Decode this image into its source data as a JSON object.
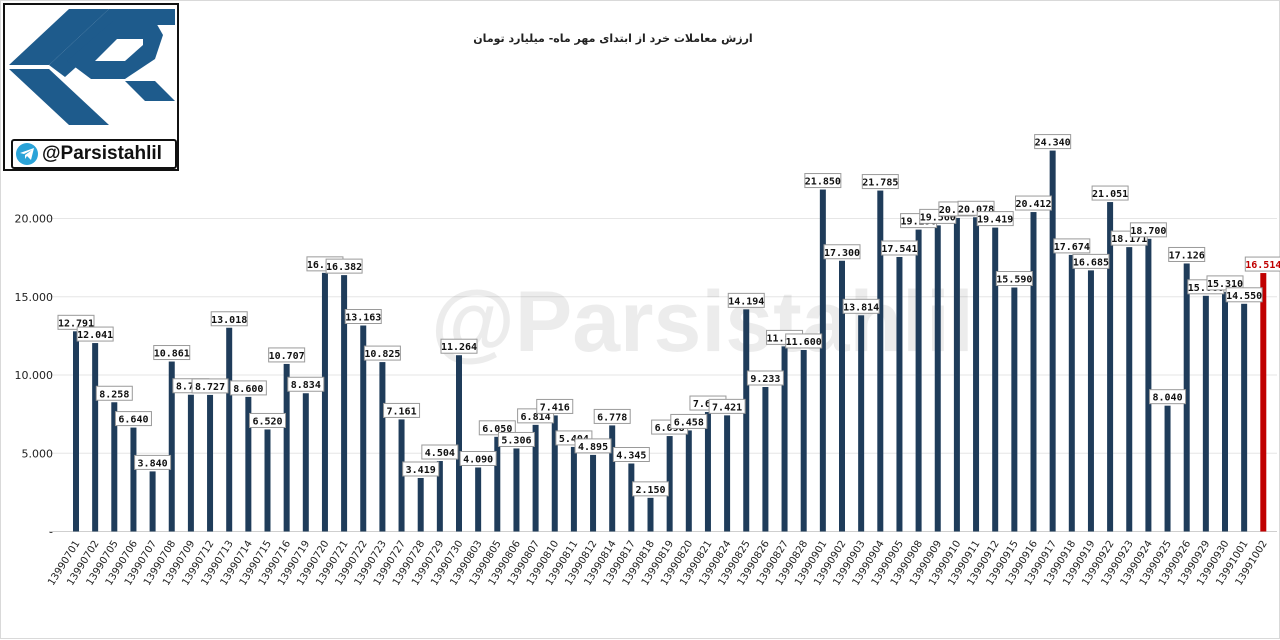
{
  "brand": {
    "handle": "@Parsistahlil",
    "watermark": "@Parsistahlil",
    "logo_icon": "parsistahlil-logo-icon",
    "telegram_icon": "telegram-icon"
  },
  "colors": {
    "bar": "#1f3c5a",
    "bar_highlight": "#c00000",
    "highlight_label": "#c00000",
    "logo_blue": "#1e5b8c"
  },
  "chart_data": {
    "type": "bar",
    "title": "ارزش معاملات خرد از ابتدای مهر ماه- میلیارد تومان",
    "xlabel": "",
    "ylabel": "",
    "ylim": [
      0,
      25000
    ],
    "yticks": [
      0,
      5000,
      10000,
      15000,
      20000
    ],
    "ytick_labels": [
      "-",
      "5.000",
      "10.000",
      "15.000",
      "20.000"
    ],
    "grid": true,
    "legend": "none",
    "categories": [
      "13990701",
      "13990702",
      "13990705",
      "13990706",
      "13990707",
      "13990708",
      "13990709",
      "13990712",
      "13990713",
      "13990714",
      "13990715",
      "13990716",
      "13990719",
      "13990720",
      "13990721",
      "13990722",
      "13990723",
      "13990727",
      "13990728",
      "13990729",
      "13990730",
      "13990803",
      "13990805",
      "13990806",
      "13990807",
      "13990810",
      "13990811",
      "13990812",
      "13990814",
      "13990817",
      "13990818",
      "13990819",
      "13990820",
      "13990821",
      "13990824",
      "13990825",
      "13990826",
      "13990827",
      "13990828",
      "13990901",
      "13990902",
      "13990903",
      "13990904",
      "13990905",
      "13990908",
      "13990909",
      "13990910",
      "13990911",
      "13990912",
      "13990915",
      "13990916",
      "13990917",
      "13990918",
      "13990919",
      "13990922",
      "13990923",
      "13990924",
      "13990925",
      "13990926",
      "13990929",
      "13990930",
      "13991001",
      "13991002"
    ],
    "values": [
      12791,
      12041,
      8258,
      6640,
      3840,
      10861,
      8739,
      8727,
      13018,
      8600,
      6520,
      10707,
      8834,
      16527,
      16382,
      13163,
      10825,
      7161,
      3419,
      4504,
      11264,
      4090,
      6050,
      5306,
      6814,
      7416,
      5404,
      4895,
      6778,
      4345,
      2150,
      6098,
      6458,
      7633,
      7421,
      14194,
      9233,
      11828,
      11600,
      21850,
      17300,
      13814,
      21785,
      17541,
      19290,
      19560,
      20036,
      20078,
      19419,
      15590,
      20412,
      24340,
      17674,
      16685,
      21051,
      18171,
      18700,
      8040,
      17126,
      15060,
      15310,
      14550,
      16514
    ],
    "value_labels": [
      "12.791",
      "12.041",
      "8.258",
      "6.640",
      "3.840",
      "10.861",
      "8.739",
      "8.727",
      "13.018",
      "8.600",
      "6.520",
      "10.707",
      "8.834",
      "16.527",
      "16.382",
      "13.163",
      "10.825",
      "7.161",
      "3.419",
      "4.504",
      "11.264",
      "4.090",
      "6.050",
      "5.306",
      "6.814",
      "7.416",
      "5.404",
      "4.895",
      "6.778",
      "4.345",
      "2.150",
      "6.098",
      "6.458",
      "7.633",
      "7.421",
      "14.194",
      "9.233",
      "11.828",
      "11.600",
      "21.850",
      "17.300",
      "13.814",
      "21.785",
      "17.541",
      "19.290",
      "19.560",
      "20.036",
      "20.078",
      "19.419",
      "15.590",
      "20.412",
      "24.340",
      "17.674",
      "16.685",
      "21.051",
      "18.171",
      "18.700",
      "8.040",
      "17.126",
      "15.060",
      "15.310",
      "14.550",
      "16.514"
    ],
    "highlight_index": 62
  }
}
